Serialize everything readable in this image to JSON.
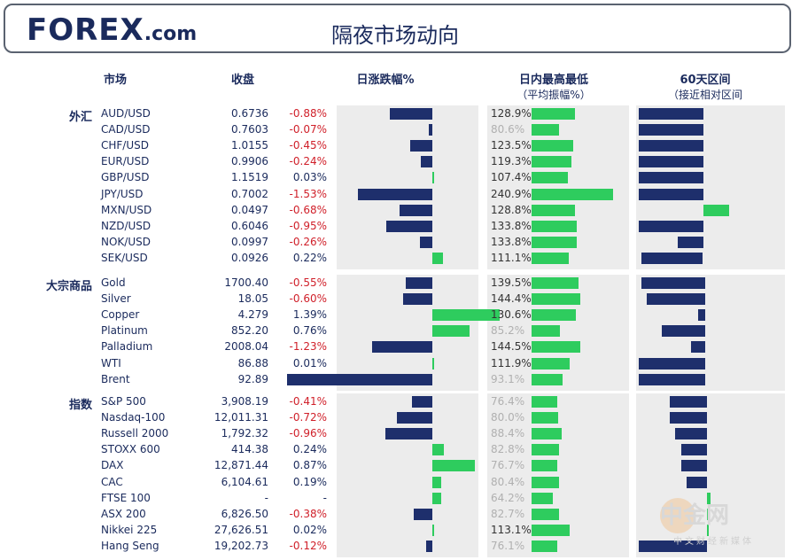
{
  "header": {
    "brand": "FOREX",
    "brand_suffix": ".com",
    "title": "隔夜市场动向"
  },
  "columns": {
    "market": "市场",
    "close": "收盘",
    "change": "日涨跌幅%",
    "range": "日内最高最低",
    "range_sub": "（平均振幅%）",
    "sixty": "60天区间",
    "sixty_sub": "（接近相对区间"
  },
  "watermark": {
    "name": "中金网",
    "sub": "中文财经新媒体"
  },
  "colors": {
    "navy": "#1e2f6c",
    "green": "#2ecc5e",
    "negative": "#d0202a"
  },
  "groups": [
    {
      "label": "外汇",
      "rows": [
        {
          "name": "AUD/USD",
          "close": "0.6736",
          "change": "-0.88%",
          "chg": -0.88,
          "range": "128.9%",
          "rv": 128.9,
          "dim": false,
          "s60": [
            0.0,
            0.5
          ]
        },
        {
          "name": "CAD/USD",
          "close": "0.7603",
          "change": "-0.07%",
          "chg": -0.07,
          "range": "80.6%",
          "rv": 80.6,
          "dim": true,
          "s60": [
            0.0,
            0.5
          ]
        },
        {
          "name": "CHF/USD",
          "close": "1.0155",
          "change": "-0.45%",
          "chg": -0.45,
          "range": "123.5%",
          "rv": 123.5,
          "dim": false,
          "s60": [
            0.0,
            0.5
          ]
        },
        {
          "name": "EUR/USD",
          "close": "0.9906",
          "change": "-0.24%",
          "chg": -0.24,
          "range": "119.3%",
          "rv": 119.3,
          "dim": false,
          "s60": [
            0.0,
            0.5
          ]
        },
        {
          "name": "GBP/USD",
          "close": "1.1519",
          "change": "0.03%",
          "chg": 0.03,
          "range": "107.4%",
          "rv": 107.4,
          "dim": false,
          "s60": [
            0.0,
            0.5
          ]
        },
        {
          "name": "JPY/USD",
          "close": "0.7002",
          "change": "-1.53%",
          "chg": -1.53,
          "range": "240.9%",
          "rv": 240.9,
          "dim": false,
          "s60": [
            0.0,
            0.5
          ]
        },
        {
          "name": "MXN/USD",
          "close": "0.0497",
          "change": "-0.68%",
          "chg": -0.68,
          "range": "128.8%",
          "rv": 128.8,
          "dim": false,
          "s60": [
            0.5,
            0.7
          ]
        },
        {
          "name": "NZD/USD",
          "close": "0.6046",
          "change": "-0.95%",
          "chg": -0.95,
          "range": "133.8%",
          "rv": 133.8,
          "dim": false,
          "s60": [
            0.0,
            0.5
          ]
        },
        {
          "name": "NOK/USD",
          "close": "0.0997",
          "change": "-0.26%",
          "chg": -0.26,
          "range": "133.8%",
          "rv": 133.8,
          "dim": false,
          "s60": [
            0.3,
            0.5
          ]
        },
        {
          "name": "SEK/USD",
          "close": "0.0926",
          "change": "0.22%",
          "chg": 0.22,
          "range": "111.1%",
          "rv": 111.1,
          "dim": false,
          "s60": [
            0.02,
            0.5
          ]
        }
      ]
    },
    {
      "label": "大宗商品",
      "rows": [
        {
          "name": "Gold",
          "close": "1700.40",
          "change": "-0.55%",
          "chg": -0.55,
          "range": "139.5%",
          "rv": 139.5,
          "dim": false,
          "s60": [
            0.02,
            0.52
          ]
        },
        {
          "name": "Silver",
          "close": "18.05",
          "change": "-0.60%",
          "chg": -0.6,
          "range": "144.4%",
          "rv": 144.4,
          "dim": false,
          "s60": [
            0.06,
            0.52
          ]
        },
        {
          "name": "Copper",
          "close": "4.279",
          "change": "1.39%",
          "chg": 1.39,
          "range": "130.6%",
          "rv": 130.6,
          "dim": false,
          "s60": [
            0.46,
            0.52
          ]
        },
        {
          "name": "Platinum",
          "close": "852.20",
          "change": "0.76%",
          "chg": 0.76,
          "range": "85.2%",
          "rv": 85.2,
          "dim": true,
          "s60": [
            0.18,
            0.52
          ]
        },
        {
          "name": "Palladium",
          "close": "2008.04",
          "change": "-1.23%",
          "chg": -1.23,
          "range": "144.5%",
          "rv": 144.5,
          "dim": false,
          "s60": [
            0.41,
            0.52
          ]
        },
        {
          "name": "WTI",
          "close": "86.88",
          "change": "0.01%",
          "chg": 0.01,
          "range": "111.9%",
          "rv": 111.9,
          "dim": false,
          "s60": [
            0.0,
            0.52
          ]
        },
        {
          "name": "Brent",
          "close": "92.89",
          "change": "-2.98%",
          "chg": -2.98,
          "range": "93.1%",
          "rv": 93.1,
          "dim": true,
          "s60": [
            0.0,
            0.52
          ]
        }
      ]
    },
    {
      "label": "指数",
      "rows": [
        {
          "name": "S&P 500",
          "close": "3,908.19",
          "change": "-0.41%",
          "chg": -0.41,
          "range": "76.4%",
          "rv": 76.4,
          "dim": true,
          "s60": [
            0.24,
            0.53
          ]
        },
        {
          "name": "Nasdaq-100",
          "close": "12,011.31",
          "change": "-0.72%",
          "chg": -0.72,
          "range": "80.0%",
          "rv": 80.0,
          "dim": true,
          "s60": [
            0.24,
            0.53
          ]
        },
        {
          "name": "Russell 2000",
          "close": "1,792.32",
          "change": "-0.96%",
          "chg": -0.96,
          "range": "88.4%",
          "rv": 88.4,
          "dim": true,
          "s60": [
            0.28,
            0.53
          ]
        },
        {
          "name": "STOXX 600",
          "close": "414.38",
          "change": "0.24%",
          "chg": 0.24,
          "range": "82.8%",
          "rv": 82.8,
          "dim": true,
          "s60": [
            0.33,
            0.53
          ]
        },
        {
          "name": "DAX",
          "close": "12,871.44",
          "change": "0.87%",
          "chg": 0.87,
          "range": "76.7%",
          "rv": 76.7,
          "dim": true,
          "s60": [
            0.33,
            0.53
          ]
        },
        {
          "name": "CAC",
          "close": "6,104.61",
          "change": "0.19%",
          "chg": 0.19,
          "range": "80.4%",
          "rv": 80.4,
          "dim": true,
          "s60": [
            0.37,
            0.53
          ]
        },
        {
          "name": "FTSE 100",
          "close": "-",
          "change": "-",
          "chg": 0.19,
          "range": "64.2%",
          "rv": 64.2,
          "dim": true,
          "s60": [
            0.53,
            0.56
          ]
        },
        {
          "name": "ASX 200",
          "close": "6,826.50",
          "change": "-0.38%",
          "chg": -0.38,
          "range": "82.7%",
          "rv": 82.7,
          "dim": true,
          "s60": [
            0.53,
            0.55
          ]
        },
        {
          "name": "Nikkei 225",
          "close": "27,626.51",
          "change": "0.02%",
          "chg": 0.02,
          "range": "113.1%",
          "rv": 113.1,
          "dim": false,
          "s60": [
            0.53,
            0.54
          ]
        },
        {
          "name": "Hang Seng",
          "close": "19,202.73",
          "change": "-0.12%",
          "chg": -0.12,
          "range": "76.1%",
          "rv": 76.1,
          "dim": true,
          "s60": [
            0.0,
            0.53
          ]
        }
      ]
    }
  ]
}
